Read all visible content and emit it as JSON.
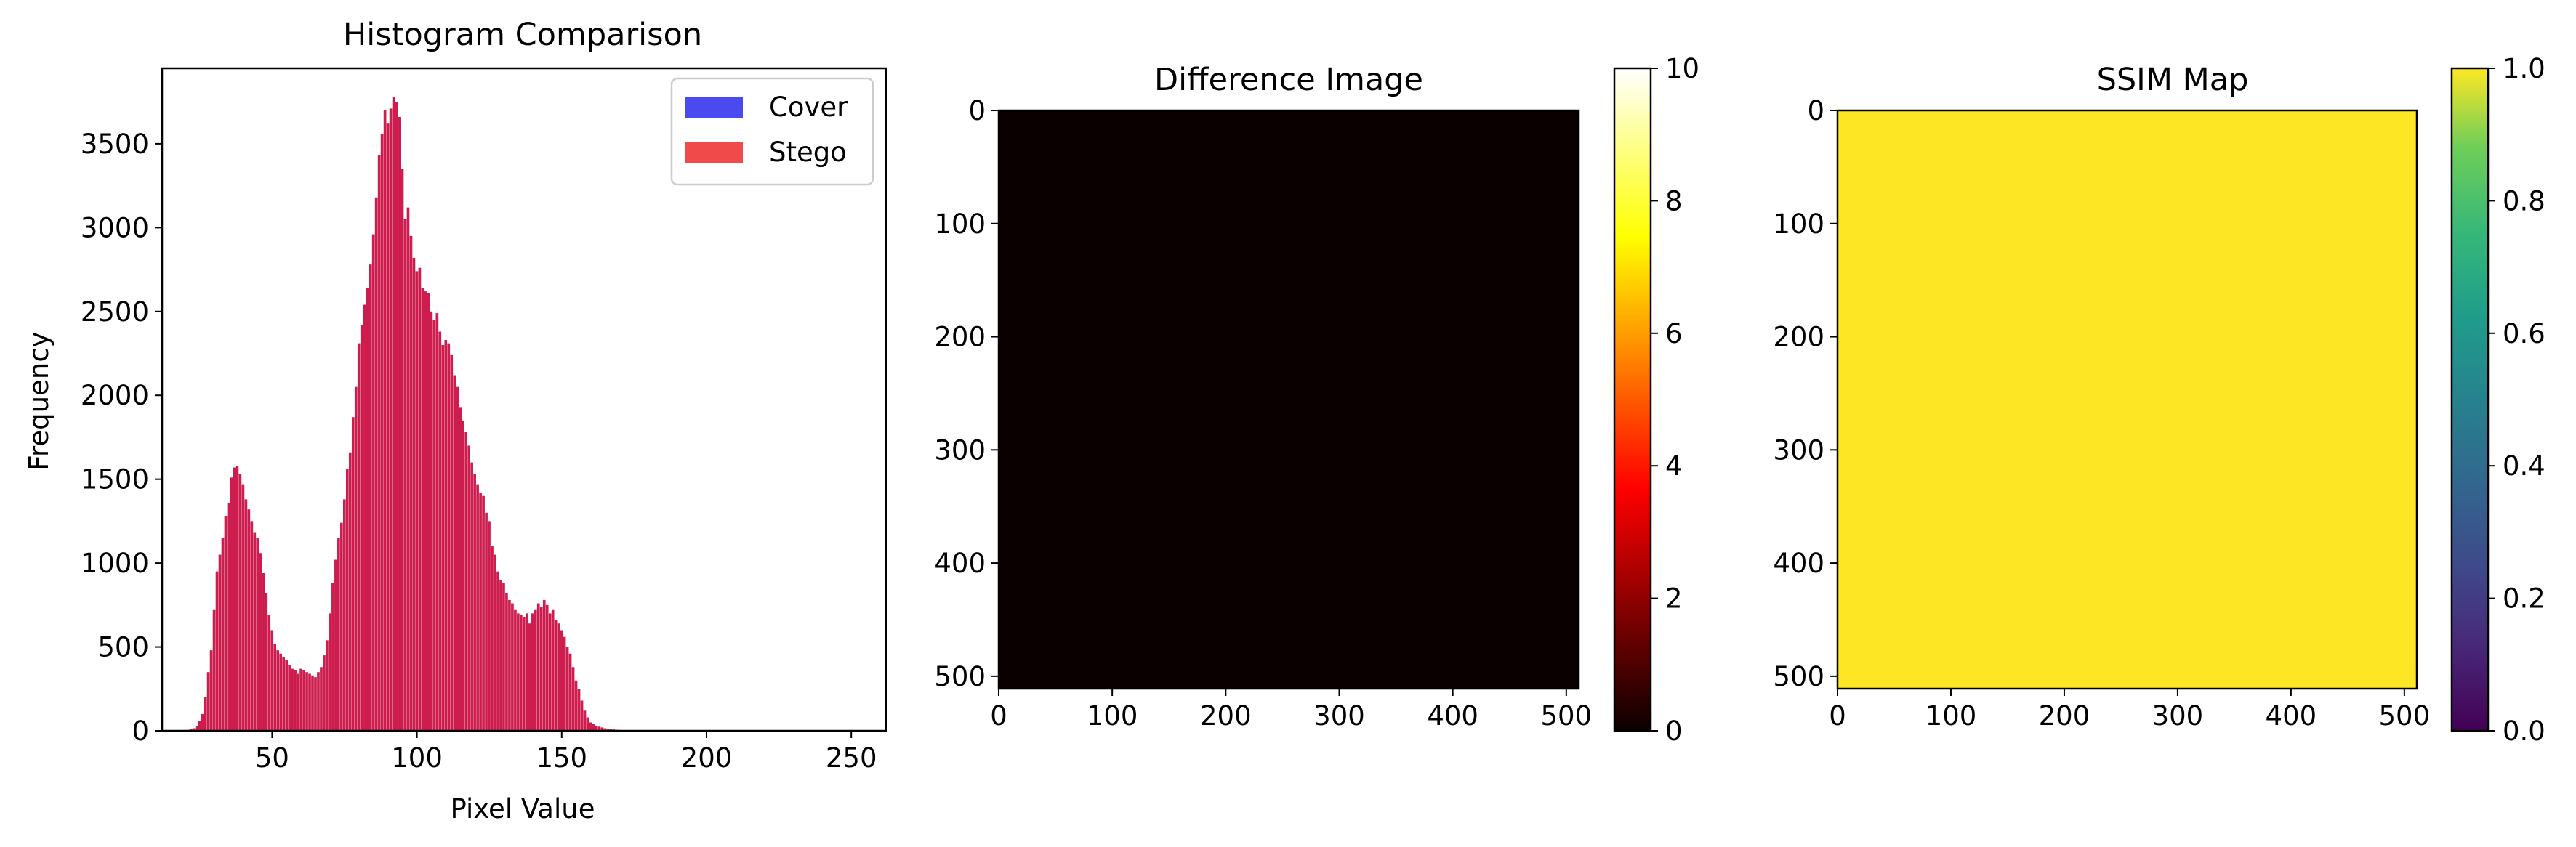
{
  "chart_data": [
    {
      "type": "bar",
      "title": "Histogram Comparison",
      "xlabel": "Pixel Value",
      "ylabel": "Frequency",
      "xlim": [
        12,
        262
      ],
      "ylim": [
        0,
        3950
      ],
      "xticks": [
        50,
        100,
        150,
        200,
        250
      ],
      "yticks": [
        0,
        500,
        1000,
        1500,
        2000,
        2500,
        3000,
        3500
      ],
      "legend_position": "top-right",
      "series": [
        {
          "name": "Cover",
          "color": "#4a4aef"
        },
        {
          "name": "Stego",
          "color": "#f04a4a"
        }
      ],
      "overlap_color": "#cc1d4e",
      "bins": {
        "start": 20,
        "values": [
          5,
          5,
          10,
          15,
          30,
          60,
          100,
          200,
          350,
          480,
          720,
          950,
          1050,
          1150,
          1280,
          1360,
          1510,
          1570,
          1580,
          1530,
          1470,
          1380,
          1320,
          1250,
          1180,
          1150,
          1060,
          940,
          820,
          690,
          600,
          520,
          480,
          460,
          440,
          420,
          390,
          370,
          360,
          340,
          370,
          360,
          350,
          340,
          330,
          320,
          350,
          380,
          450,
          540,
          700,
          880,
          1020,
          1150,
          1240,
          1380,
          1560,
          1660,
          1870,
          2050,
          2310,
          2420,
          2540,
          2640,
          2780,
          2960,
          3180,
          3430,
          3560,
          3700,
          3620,
          3710,
          3780,
          3750,
          3660,
          3350,
          3050,
          3120,
          2950,
          2820,
          2740,
          2760,
          2640,
          2620,
          2610,
          2500,
          2450,
          2490,
          2380,
          2300,
          2330,
          2310,
          2240,
          2120,
          2050,
          1930,
          1850,
          1780,
          1700,
          1600,
          1530,
          1470,
          1420,
          1400,
          1300,
          1250,
          1100,
          1050,
          950,
          900,
          880,
          820,
          780,
          760,
          720,
          700,
          690,
          680,
          700,
          640,
          700,
          720,
          760,
          740,
          780,
          750,
          700,
          720,
          660,
          640,
          600,
          560,
          500,
          460,
          380,
          300,
          250,
          180,
          120,
          80,
          50,
          40,
          30,
          25,
          20,
          15,
          12,
          10,
          8,
          6,
          5,
          4,
          3,
          2,
          2,
          1
        ]
      }
    },
    {
      "type": "heatmap",
      "title": "Difference Image",
      "xticks": [
        0,
        100,
        200,
        300,
        400,
        500
      ],
      "yticks": [
        0,
        100,
        200,
        300,
        400,
        500
      ],
      "extent": [
        0,
        511
      ],
      "value": 0,
      "colormap": "hot",
      "colorbar": {
        "min": 0,
        "max": 10,
        "ticks": [
          0,
          2,
          4,
          6,
          8,
          10
        ]
      },
      "fill_color": "#0b0000"
    },
    {
      "type": "heatmap",
      "title": "SSIM Map",
      "xticks": [
        0,
        100,
        200,
        300,
        400,
        500
      ],
      "yticks": [
        0,
        100,
        200,
        300,
        400,
        500
      ],
      "extent": [
        0,
        511
      ],
      "value": 1.0,
      "colormap": "viridis",
      "colorbar": {
        "min": 0.0,
        "max": 1.0,
        "ticks": [
          "0.0",
          "0.2",
          "0.4",
          "0.6",
          "0.8",
          "1.0"
        ]
      },
      "fill_color": "#fde725"
    }
  ]
}
